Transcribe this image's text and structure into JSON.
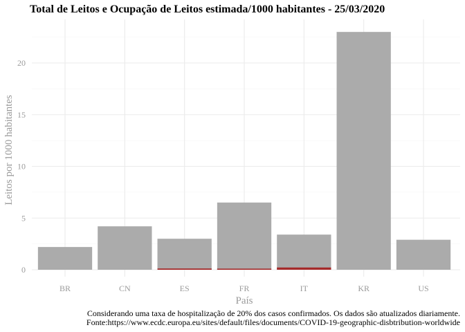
{
  "chart_data": {
    "type": "bar",
    "title": "Total de Leitos e Ocupação de Leitos estimada/1000 habitantes -  25/03/2020",
    "xlabel": "País",
    "ylabel": "Leitos por 1000 habitantes",
    "categories": [
      "BR",
      "CN",
      "ES",
      "FR",
      "IT",
      "KR",
      "US"
    ],
    "ylim": [
      0,
      24
    ],
    "yticks": [
      0,
      5,
      10,
      15,
      20
    ],
    "grid": true,
    "series": [
      {
        "role": "total_beds",
        "color": "#ababab",
        "values": [
          2.2,
          4.2,
          3.0,
          6.5,
          3.4,
          23.0,
          2.9
        ]
      },
      {
        "role": "estimated_occupancy",
        "color": "#a52a2a",
        "values": [
          0.0,
          0.0,
          0.12,
          0.07,
          0.22,
          0.0,
          0.0
        ]
      }
    ],
    "caption": [
      "Considerando uma taxa de hospitalização de 20% dos casos confirmados. Os dados são atualizados diariamente.",
      "Fonte:https://www.ecdc.europa.eu/sites/default/files/documents/COVID-19-geographic-disbtribution-worldwide"
    ]
  }
}
